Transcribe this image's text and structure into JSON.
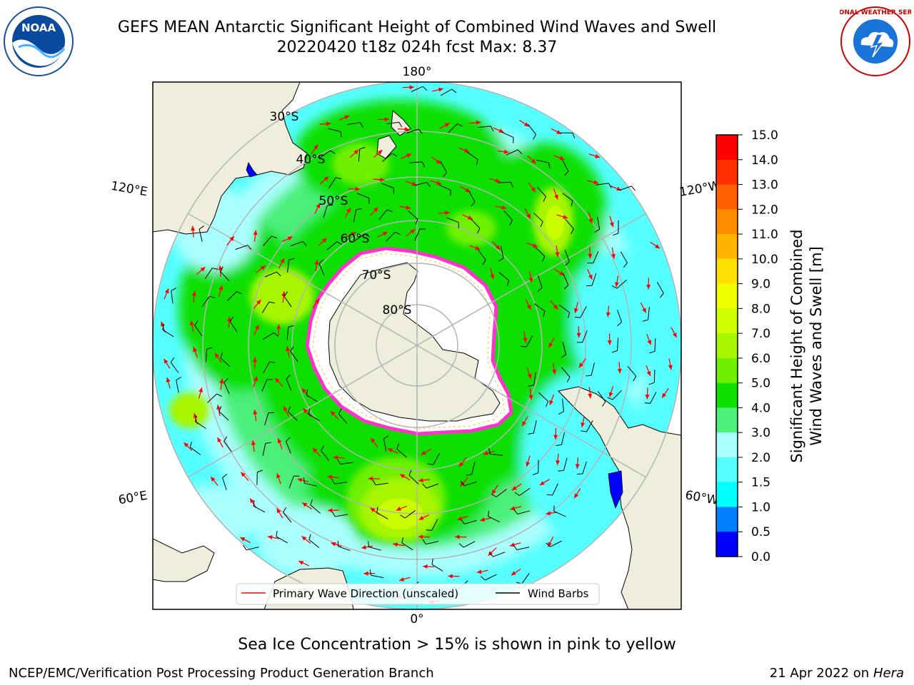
{
  "header": {
    "title_line1": "GEFS MEAN Antarctic Significant Height of Combined Wind Waves and Swell",
    "title_line2": "20220420 t18z 024h fcst   Max: 8.37"
  },
  "logos": {
    "left": {
      "icon": "noaa-logo-icon",
      "text": "NOAA"
    },
    "right": {
      "icon": "nws-logo-icon",
      "text": "NATIONAL WEATHER SERVICE"
    }
  },
  "map": {
    "projection": "south-polar-stereographic",
    "longitude_labels": {
      "top": "180°",
      "bottom": "0°",
      "upper_left": "120°E",
      "upper_right": "120°W",
      "lower_left": "60°E",
      "lower_right": "60°W"
    },
    "latitude_labels": [
      "30°S",
      "40°S",
      "50°S",
      "60°S",
      "70°S",
      "80°S"
    ],
    "legend": {
      "placement": "bottom-center",
      "items": [
        {
          "label": "Primary Wave Direction (unscaled)",
          "color": "#ff0000"
        },
        {
          "label": "Wind Barbs",
          "color": "#000000"
        }
      ]
    }
  },
  "colorbar": {
    "label_line1": "Significant Height of Combined",
    "label_line2": "Wind Waves and Swell [m]",
    "ticks": [
      "15.0",
      "14.0",
      "13.0",
      "12.0",
      "11.0",
      "10.0",
      "9.0",
      "8.0",
      "7.0",
      "6.0",
      "5.0",
      "4.0",
      "3.0",
      "2.0",
      "1.5",
      "1.0",
      "0.5",
      "0.0"
    ],
    "colors": [
      "#ff0000",
      "#ff3000",
      "#ff6000",
      "#ff8c00",
      "#ffb400",
      "#ffe000",
      "#f0ff00",
      "#d0ff00",
      "#a8f500",
      "#6ef000",
      "#10e000",
      "#4cf07a",
      "#aaffff",
      "#55ffff",
      "#00ffff",
      "#0080ff",
      "#0000ff"
    ]
  },
  "colors": {
    "land": "#efeedd",
    "ice": "#ffffff",
    "ice_edge": "#ff33cc",
    "ice_edge_inner": "#ffd060",
    "grid": "#b4b4b4",
    "frame": "#000000"
  },
  "note": "Sea Ice Concentration > 15% is shown in pink to yellow",
  "footer": {
    "left": "NCEP/EMC/Verification Post Processing Product Generation Branch",
    "right_prefix": "21 Apr 2022 on ",
    "right_host": "Hera"
  }
}
